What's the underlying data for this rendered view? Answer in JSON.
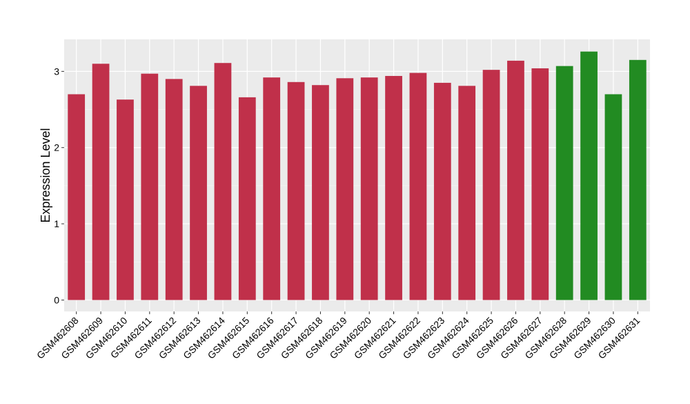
{
  "chart_data": {
    "type": "bar",
    "ylabel": "Expression Level",
    "xlabel": "",
    "ylim": [
      -0.15,
      3.42
    ],
    "yticks": [
      0,
      1,
      2,
      3
    ],
    "grid": true,
    "background": "#EBEBEB",
    "colors": {
      "group1": "#C0304A",
      "group2": "#228B22"
    },
    "categories": [
      "GSM462608",
      "GSM462609",
      "GSM462610",
      "GSM462611",
      "GSM462612",
      "GSM462613",
      "GSM462614",
      "GSM462615",
      "GSM462616",
      "GSM462617",
      "GSM462618",
      "GSM462619",
      "GSM462620",
      "GSM462621",
      "GSM462622",
      "GSM462623",
      "GSM462624",
      "GSM462625",
      "GSM462626",
      "GSM462627",
      "GSM462628",
      "GSM462629",
      "GSM462630",
      "GSM462631"
    ],
    "values": [
      2.7,
      3.1,
      2.63,
      2.97,
      2.9,
      2.81,
      3.11,
      2.66,
      2.92,
      2.86,
      2.82,
      2.91,
      2.92,
      2.94,
      2.98,
      2.85,
      2.81,
      3.02,
      3.14,
      3.04,
      3.07,
      3.26,
      2.7,
      3.15
    ],
    "groups": [
      1,
      1,
      1,
      1,
      1,
      1,
      1,
      1,
      1,
      1,
      1,
      1,
      1,
      1,
      1,
      1,
      1,
      1,
      1,
      1,
      2,
      2,
      2,
      2
    ]
  }
}
